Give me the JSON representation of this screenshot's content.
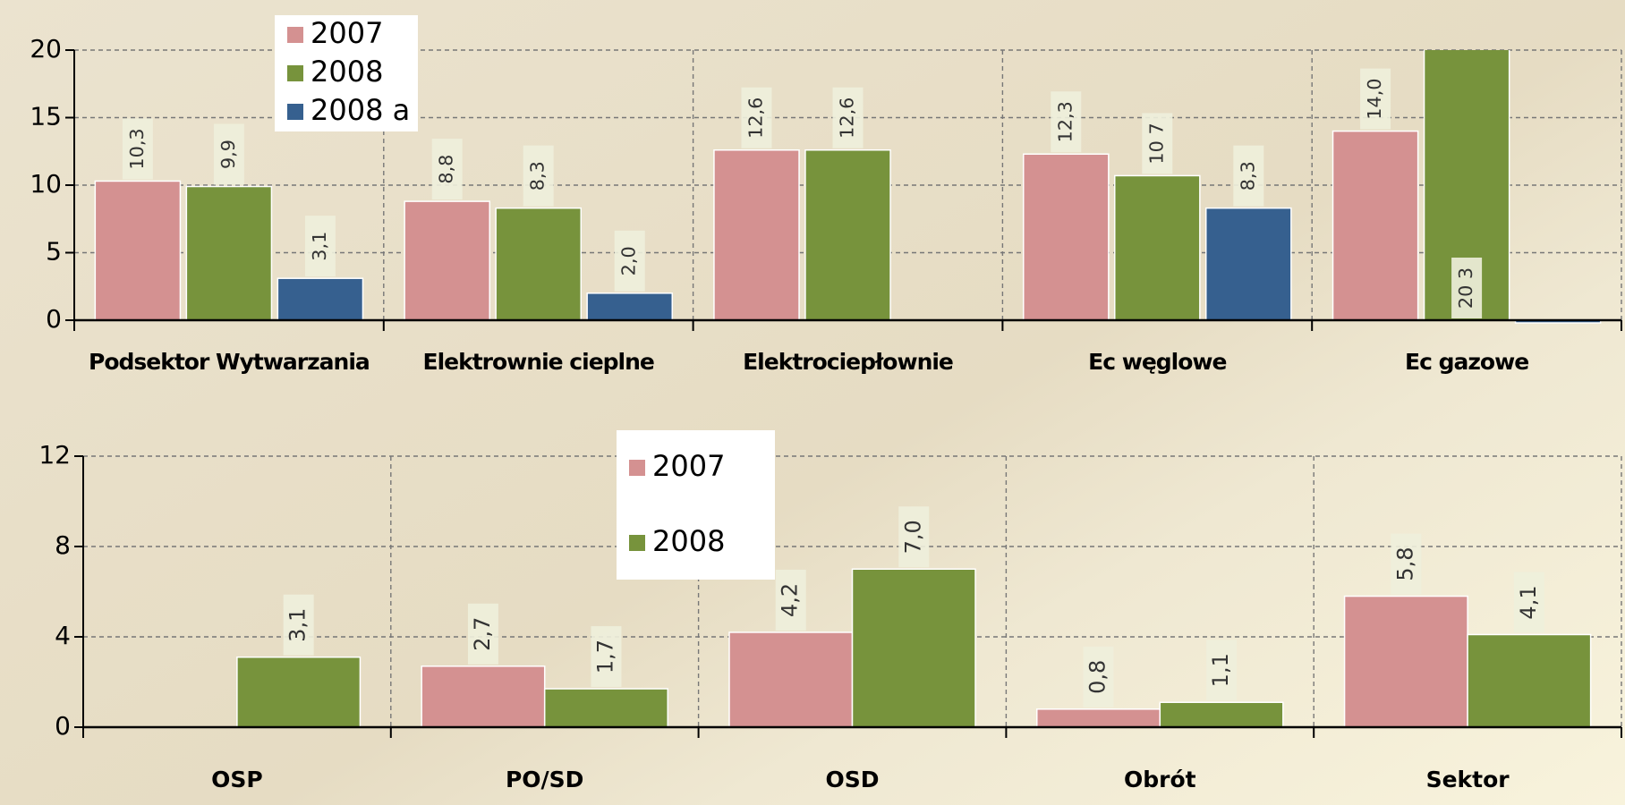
{
  "chart_data": [
    {
      "type": "bar",
      "categories": [
        "Podsektor Wytwarzania",
        "Elektrownie cieplne",
        "Elektrociepłownie",
        "Ec węglowe",
        "Ec gazowe"
      ],
      "series": [
        {
          "name": "2007",
          "color": "#d49191",
          "values": [
            10.3,
            8.8,
            12.6,
            12.3,
            14.0
          ],
          "value_labels": [
            "10,3",
            "8,8",
            "12,6",
            "12,3",
            "14,0"
          ]
        },
        {
          "name": "2008",
          "color": "#77933c",
          "values": [
            9.9,
            8.3,
            12.6,
            10.7,
            20.3
          ],
          "value_labels": [
            "9,9",
            "8,3",
            "12,6",
            "10 7",
            "20 3"
          ]
        },
        {
          "name": "2008 a",
          "color": "#36608f",
          "values": [
            3.1,
            2.0,
            null,
            8.3,
            -0.2
          ],
          "value_labels": [
            "3,1",
            "2,0",
            null,
            "8,3",
            null
          ]
        }
      ],
      "ylim": [
        0,
        20
      ],
      "yticks": [
        0,
        5,
        10,
        15,
        20
      ],
      "grid": true
    },
    {
      "type": "bar",
      "categories": [
        "OSP",
        "PO/SD",
        "OSD",
        "Obrót",
        "Sektor"
      ],
      "series": [
        {
          "name": "2007",
          "color": "#d49191",
          "values": [
            null,
            2.7,
            4.2,
            0.8,
            5.8
          ],
          "value_labels": [
            null,
            "2,7",
            "4,2",
            "0,8",
            "5,8"
          ]
        },
        {
          "name": "2008",
          "color": "#77933c",
          "values": [
            3.1,
            1.7,
            7.0,
            1.1,
            4.1
          ],
          "value_labels": [
            "3,1",
            "1,7",
            "7,0",
            "1,1",
            "4,1"
          ]
        }
      ],
      "ylim": [
        0,
        12
      ],
      "yticks": [
        0,
        4,
        8,
        12
      ],
      "grid": true
    }
  ]
}
